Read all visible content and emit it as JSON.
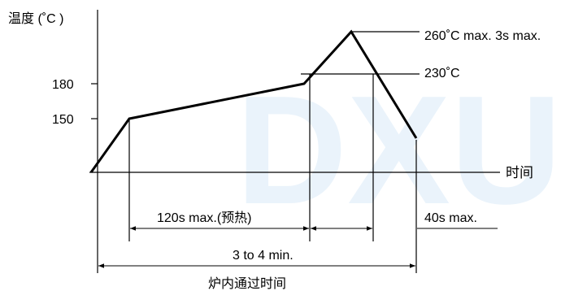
{
  "diagram": {
    "y_axis_label": "温度 (˚C )",
    "x_axis_label": "时间",
    "y_ticks": [
      "180",
      "150"
    ],
    "peak_label": "260˚C max. 3s max.",
    "reflow_threshold_label": "230˚C",
    "preheat_label": "120s max.(预热)",
    "reflow_label": "40s max.",
    "total_label": "3 to 4 min.",
    "bottom_caption": "炉内通过时间",
    "watermark": "DXU",
    "colors": {
      "line": "#000000",
      "watermark": "#eaf3fb"
    }
  }
}
